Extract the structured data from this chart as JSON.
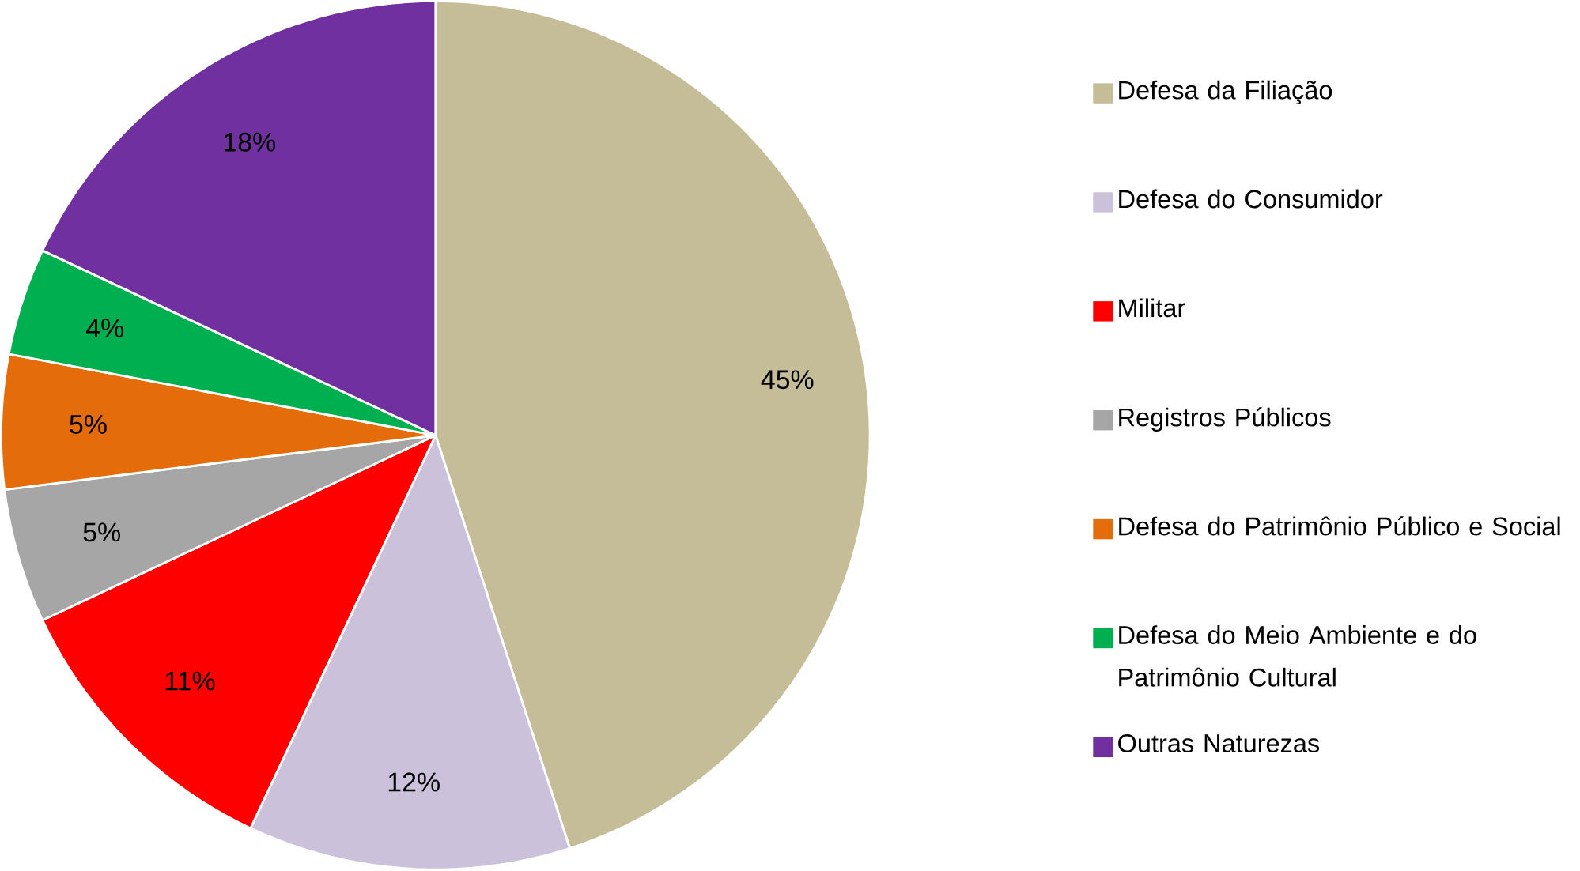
{
  "chart_data": {
    "type": "pie",
    "categories": [
      "Defesa da Filiação",
      "Defesa do Consumidor",
      "Militar",
      "Registros Públicos",
      "Defesa do Patrimônio Público e Social",
      "Defesa do Meio Ambiente e do Patrimônio Cultural",
      "Outras Naturezas"
    ],
    "values": [
      45,
      12,
      11,
      5,
      5,
      4,
      18
    ],
    "value_labels": [
      "45%",
      "12%",
      "11%",
      "5%",
      "5%",
      "4%",
      "18%"
    ],
    "colors": [
      "#c4bd97",
      "#ccc1da",
      "#ff0000",
      "#a6a6a6",
      "#e46c0a",
      "#00b050",
      "#7030a0"
    ],
    "legend": "right"
  }
}
